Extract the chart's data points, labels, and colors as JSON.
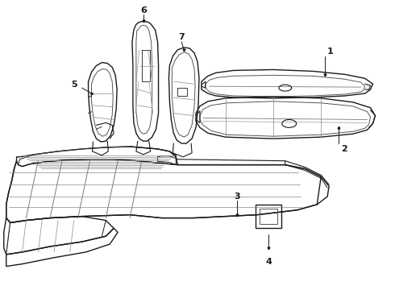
{
  "background_color": "#ffffff",
  "line_color": "#1a1a1a",
  "line_width": 1.0,
  "label_fontsize": 8,
  "fig_width": 4.9,
  "fig_height": 3.6,
  "dpi": 100
}
